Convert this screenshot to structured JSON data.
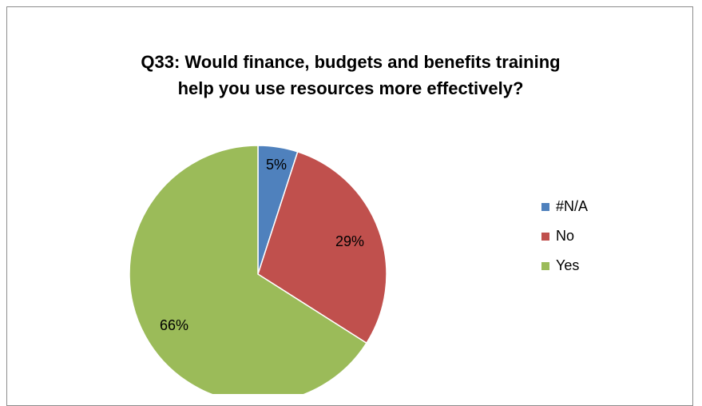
{
  "chart_data": {
    "type": "pie",
    "title": "Q33: Would finance, budgets and benefits training help you use resources more effectively?",
    "title_lines": [
      "Q33: Would finance, budgets and benefits training",
      "help you use resources more effectively?"
    ],
    "categories": [
      "#N/A",
      "No",
      "Yes"
    ],
    "values": [
      5,
      29,
      66
    ],
    "data_labels": [
      "5%",
      "29%",
      "66%"
    ],
    "colors": [
      "#4f81bd",
      "#c0504d",
      "#9bbb59"
    ],
    "legend_position": "right"
  }
}
